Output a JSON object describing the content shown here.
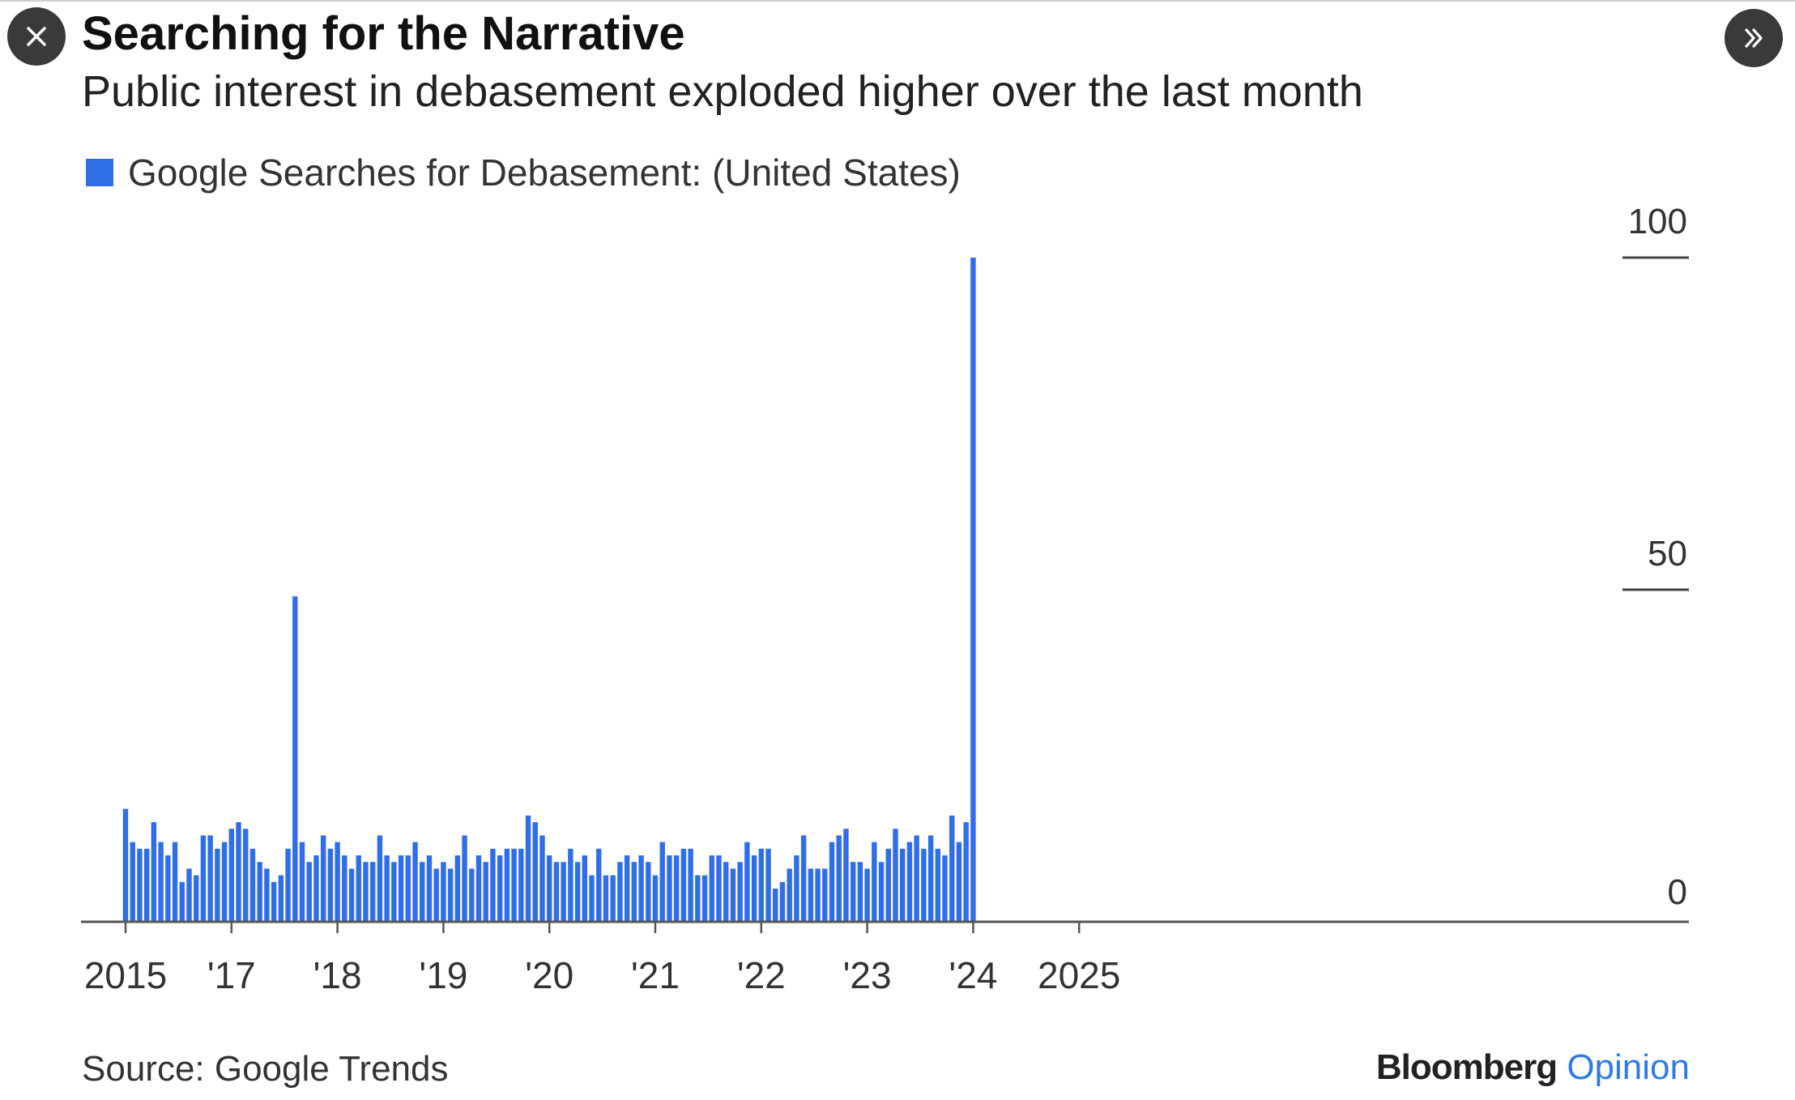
{
  "header": {
    "title": "Searching for the Narrative",
    "subtitle": "Public interest in debasement exploded higher over the last month"
  },
  "controls": {
    "close_icon": "close-icon",
    "expand_icon": "double-chevron-right-icon"
  },
  "legend": {
    "label": "Google Searches for Debasement: (United States)",
    "color": "#2f6ee8"
  },
  "footer": {
    "source": "Source: Google Trends",
    "brand_main": "Bloomberg",
    "brand_accent": "Opinion"
  },
  "colors": {
    "bar": "#2f6ee8",
    "axis": "#555555",
    "brand_accent": "#2f7be8"
  },
  "chart_data": {
    "type": "bar",
    "title": "Searching for the Narrative",
    "subtitle": "Public interest in debasement exploded higher over the last month",
    "xlabel": "",
    "ylabel": "",
    "ylim": [
      0,
      100
    ],
    "y_ticks": [
      0,
      50,
      100
    ],
    "y_axis_side": "right",
    "x_tick_labels": [
      {
        "label": "2015",
        "date": "2015-01"
      },
      {
        "label": "'17",
        "date": "2016-04"
      },
      {
        "label": "'18",
        "date": "2017-07"
      },
      {
        "label": "'19",
        "date": "2018-10"
      },
      {
        "label": "'20",
        "date": "2020-01"
      },
      {
        "label": "'21",
        "date": "2021-04"
      },
      {
        "label": "'22",
        "date": "2022-07"
      },
      {
        "label": "'23",
        "date": "2023-10"
      },
      {
        "label": "'24",
        "date": "2025-01"
      },
      {
        "label": "2025",
        "date": "2026-04"
      }
    ],
    "start_month": "2015-01",
    "series": [
      {
        "name": "Google Searches for Debasement: (United States)",
        "values": [
          17,
          12,
          11,
          11,
          15,
          12,
          10,
          12,
          6,
          8,
          7,
          13,
          13,
          11,
          12,
          14,
          15,
          14,
          11,
          9,
          8,
          6,
          7,
          11,
          49,
          12,
          9,
          10,
          13,
          11,
          12,
          10,
          8,
          10,
          9,
          9,
          13,
          10,
          9,
          10,
          10,
          12,
          9,
          10,
          8,
          9,
          8,
          10,
          13,
          8,
          10,
          9,
          11,
          10,
          11,
          11,
          11,
          16,
          15,
          13,
          10,
          9,
          9,
          11,
          9,
          10,
          7,
          11,
          7,
          7,
          9,
          10,
          9,
          10,
          9,
          7,
          12,
          10,
          10,
          11,
          11,
          7,
          7,
          10,
          10,
          9,
          8,
          9,
          12,
          10,
          11,
          11,
          5,
          6,
          8,
          10,
          13,
          8,
          8,
          8,
          12,
          13,
          14,
          9,
          9,
          8,
          12,
          9,
          11,
          14,
          11,
          12,
          13,
          11,
          13,
          11,
          10,
          16,
          12,
          15,
          100
        ]
      }
    ]
  }
}
